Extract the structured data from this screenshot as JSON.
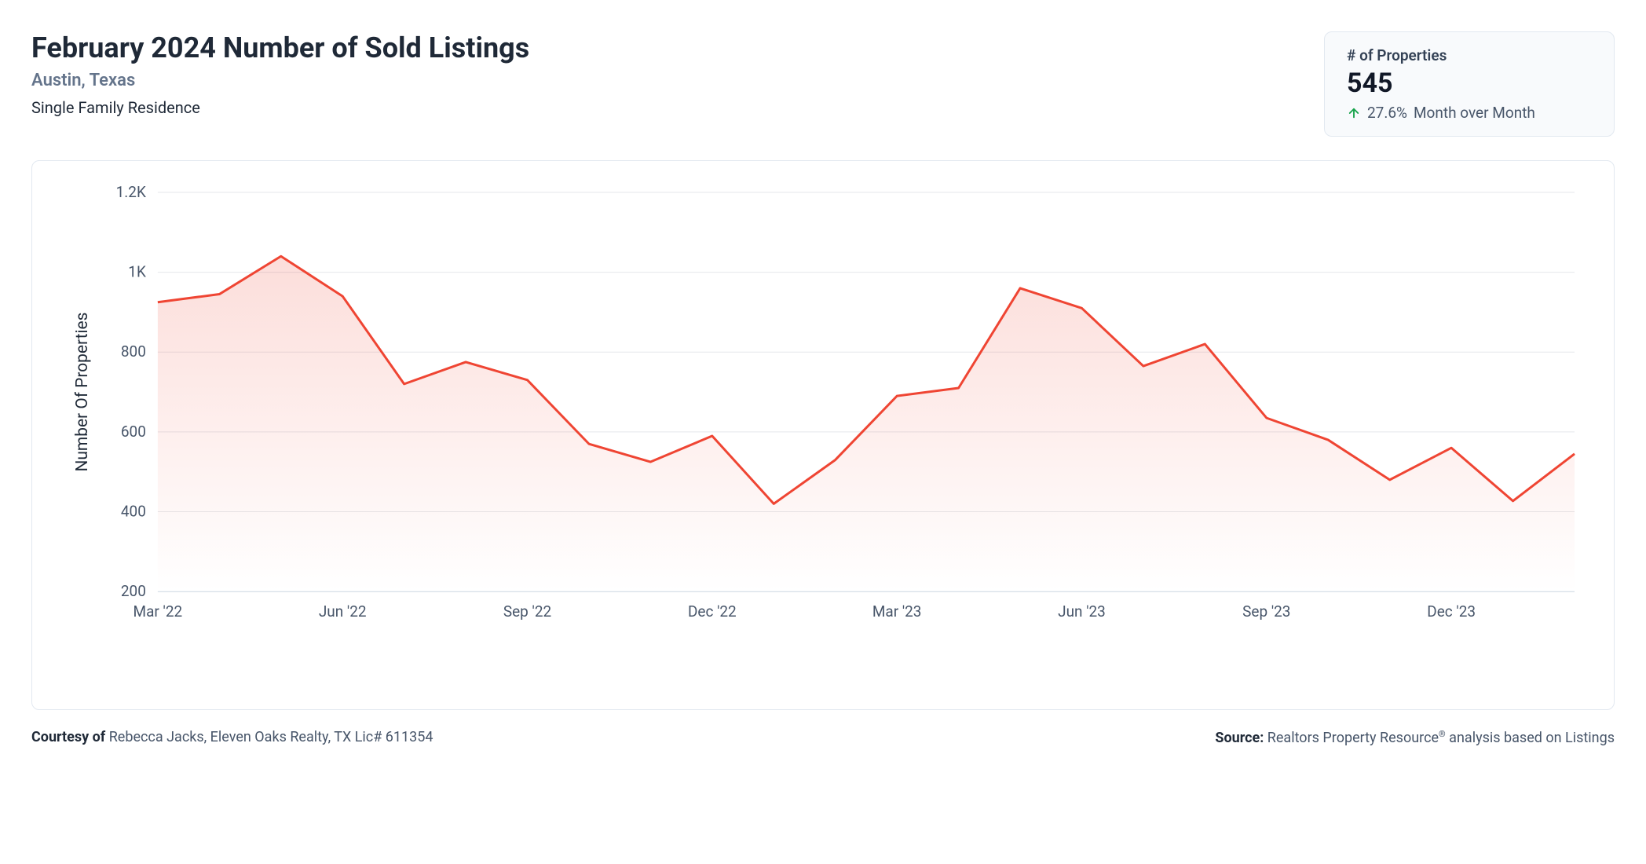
{
  "header": {
    "title": "February 2024 Number of Sold Listings",
    "location": "Austin, Texas",
    "property_type": "Single Family Residence"
  },
  "stat": {
    "label": "# of Properties",
    "value": "545",
    "change_pct": "27.6%",
    "change_suffix": "Month over Month",
    "arrow_color": "#16a34a"
  },
  "chart": {
    "type": "area",
    "line_color": "#ef4533",
    "area_fill_top": "rgba(239,69,51,0.18)",
    "area_fill_bottom": "rgba(239,69,51,0.0)",
    "background_color": "#ffffff",
    "grid_color": "#e5e7eb",
    "baseline_color": "#cbd5e1",
    "line_width": 3,
    "yaxis": {
      "title": "Number Of Properties",
      "min": 200,
      "max": 1200,
      "ticks": [
        200,
        400,
        600,
        800,
        "1K",
        "1.2K"
      ],
      "tick_values": [
        200,
        400,
        600,
        800,
        1000,
        1200
      ],
      "label_fontsize": 19,
      "title_fontsize": 21
    },
    "xaxis": {
      "tick_labels": [
        "Mar '22",
        "Jun '22",
        "Sep '22",
        "Dec '22",
        "Mar '23",
        "Jun '23",
        "Sep '23",
        "Dec '23"
      ],
      "tick_indices": [
        0,
        3,
        6,
        9,
        12,
        15,
        18,
        21
      ],
      "label_fontsize": 19
    },
    "series": {
      "x_labels": [
        "Mar '22",
        "Apr '22",
        "May '22",
        "Jun '22",
        "Jul '22",
        "Aug '22",
        "Sep '22",
        "Oct '22",
        "Nov '22",
        "Dec '22",
        "Jan '23",
        "Feb '23",
        "Mar '23",
        "Apr '23",
        "May '23",
        "Jun '23",
        "Jul '23",
        "Aug '23",
        "Sep '23",
        "Oct '23",
        "Nov '23",
        "Dec '23",
        "Jan '24",
        "Feb '24"
      ],
      "values": [
        925,
        945,
        1040,
        940,
        720,
        775,
        730,
        570,
        525,
        590,
        420,
        530,
        690,
        710,
        960,
        910,
        765,
        820,
        635,
        580,
        480,
        560,
        427,
        545
      ]
    }
  },
  "footer": {
    "left_prefix": "Courtesy of ",
    "left_text": "Rebecca Jacks, Eleven Oaks Realty, TX Lic# 611354",
    "right_prefix": "Source: ",
    "right_text_a": "Realtors Property Resource",
    "right_text_b": " analysis based on Listings"
  }
}
